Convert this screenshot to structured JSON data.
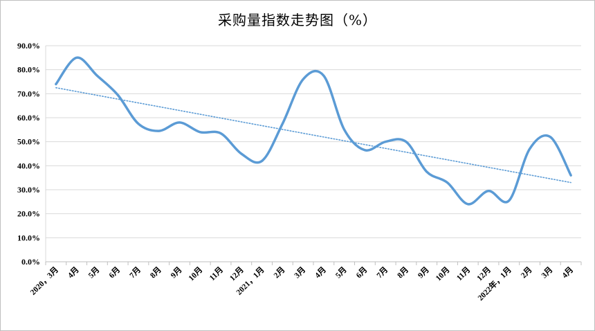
{
  "chart_data": {
    "type": "line",
    "title": "采购量指数走势图（%）",
    "categories": [
      "2020，3月",
      "4月",
      "5月",
      "6月",
      "7月",
      "8月",
      "9月",
      "10月",
      "11月",
      "12月",
      "2021，1月",
      "2月",
      "3月",
      "4月",
      "5月",
      "6月",
      "7月",
      "8月",
      "9月",
      "10月",
      "11月",
      "12月",
      "2022年，1月",
      "2月",
      "3月",
      "4月"
    ],
    "series": [
      {
        "values": [
          74.0,
          85.0,
          77.5,
          69.5,
          57.5,
          54.5,
          58.0,
          54.0,
          53.5,
          45.0,
          42.0,
          57.5,
          76.0,
          77.5,
          55.0,
          46.5,
          50.0,
          50.0,
          37.5,
          33.0,
          24.0,
          29.5,
          25.5,
          47.0,
          52.0,
          36.0
        ]
      }
    ],
    "trendline": {
      "style": "dotted",
      "start": 72.5,
      "end": 33.0
    },
    "yticks": [
      "0.0%",
      "10.0%",
      "20.0%",
      "30.0%",
      "40.0%",
      "50.0%",
      "60.0%",
      "70.0%",
      "80.0%",
      "90.0%"
    ],
    "ylim": [
      0,
      90
    ],
    "xlabel": "",
    "ylabel": "",
    "grid": true,
    "colors": {
      "line": "#5b9bd5",
      "trend": "#5b9bd5",
      "grid": "#d9d9d9"
    }
  }
}
